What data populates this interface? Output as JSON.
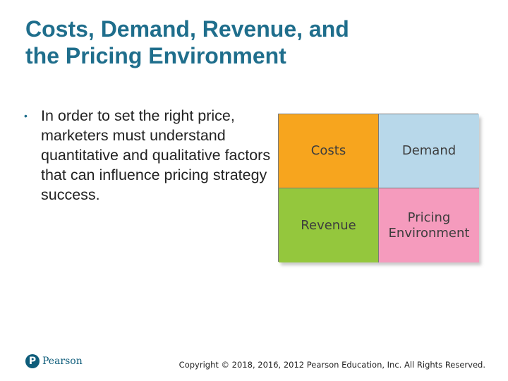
{
  "title": {
    "line1": "Costs, Demand, Revenue, and",
    "line2": "the Pricing Environment"
  },
  "bullet": {
    "symbol": "•",
    "text": "In order to set the right price, marketers must understand quantitative and qualitative factors that can influence pricing strategy success."
  },
  "grid": {
    "cells": [
      {
        "label": "Costs",
        "color": "#f7a51e"
      },
      {
        "label": "Demand",
        "color": "#b8d8ea"
      },
      {
        "label": "Revenue",
        "color": "#94c73d"
      },
      {
        "label": "Pricing\nEnvironment",
        "color": "#f59bbd"
      }
    ]
  },
  "footer": {
    "logo_mark": "P",
    "logo_text": "Pearson",
    "copyright": "Copyright © 2018, 2016, 2012 Pearson Education, Inc. All Rights Reserved."
  },
  "colors": {
    "title": "#1f6e8c",
    "brand": "#0d5c7a"
  }
}
